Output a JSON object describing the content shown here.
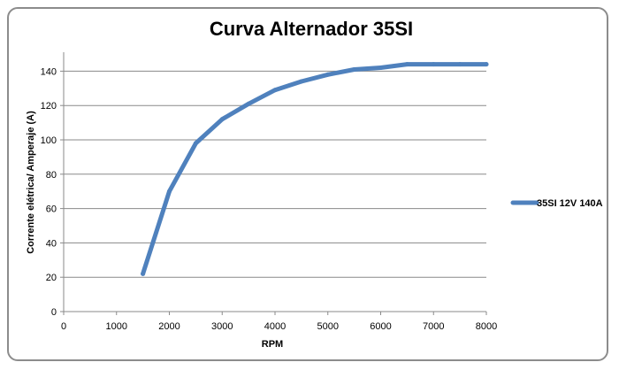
{
  "chart_data": {
    "type": "line",
    "title": "Curva Alternador 35SI",
    "xlabel": "RPM",
    "ylabel": "Corrente elétrica/  Amperaje (A)",
    "xlim": [
      0,
      8000
    ],
    "ylim": [
      0,
      150
    ],
    "x_ticks": [
      0,
      1000,
      2000,
      3000,
      4000,
      5000,
      6000,
      7000,
      8000
    ],
    "y_ticks": [
      0,
      20,
      40,
      60,
      80,
      100,
      120,
      140
    ],
    "grid": "horizontal",
    "legend_position": "right",
    "series": [
      {
        "name": "35SI 12V 140A",
        "color": "#4f81bd",
        "x": [
          1500,
          2000,
          2500,
          3000,
          3500,
          4000,
          4500,
          5000,
          5500,
          6000,
          6500,
          7000,
          7500,
          8000
        ],
        "y": [
          22,
          70,
          98,
          112,
          121,
          129,
          134,
          138,
          141,
          142,
          144,
          144,
          144,
          144
        ]
      }
    ]
  }
}
